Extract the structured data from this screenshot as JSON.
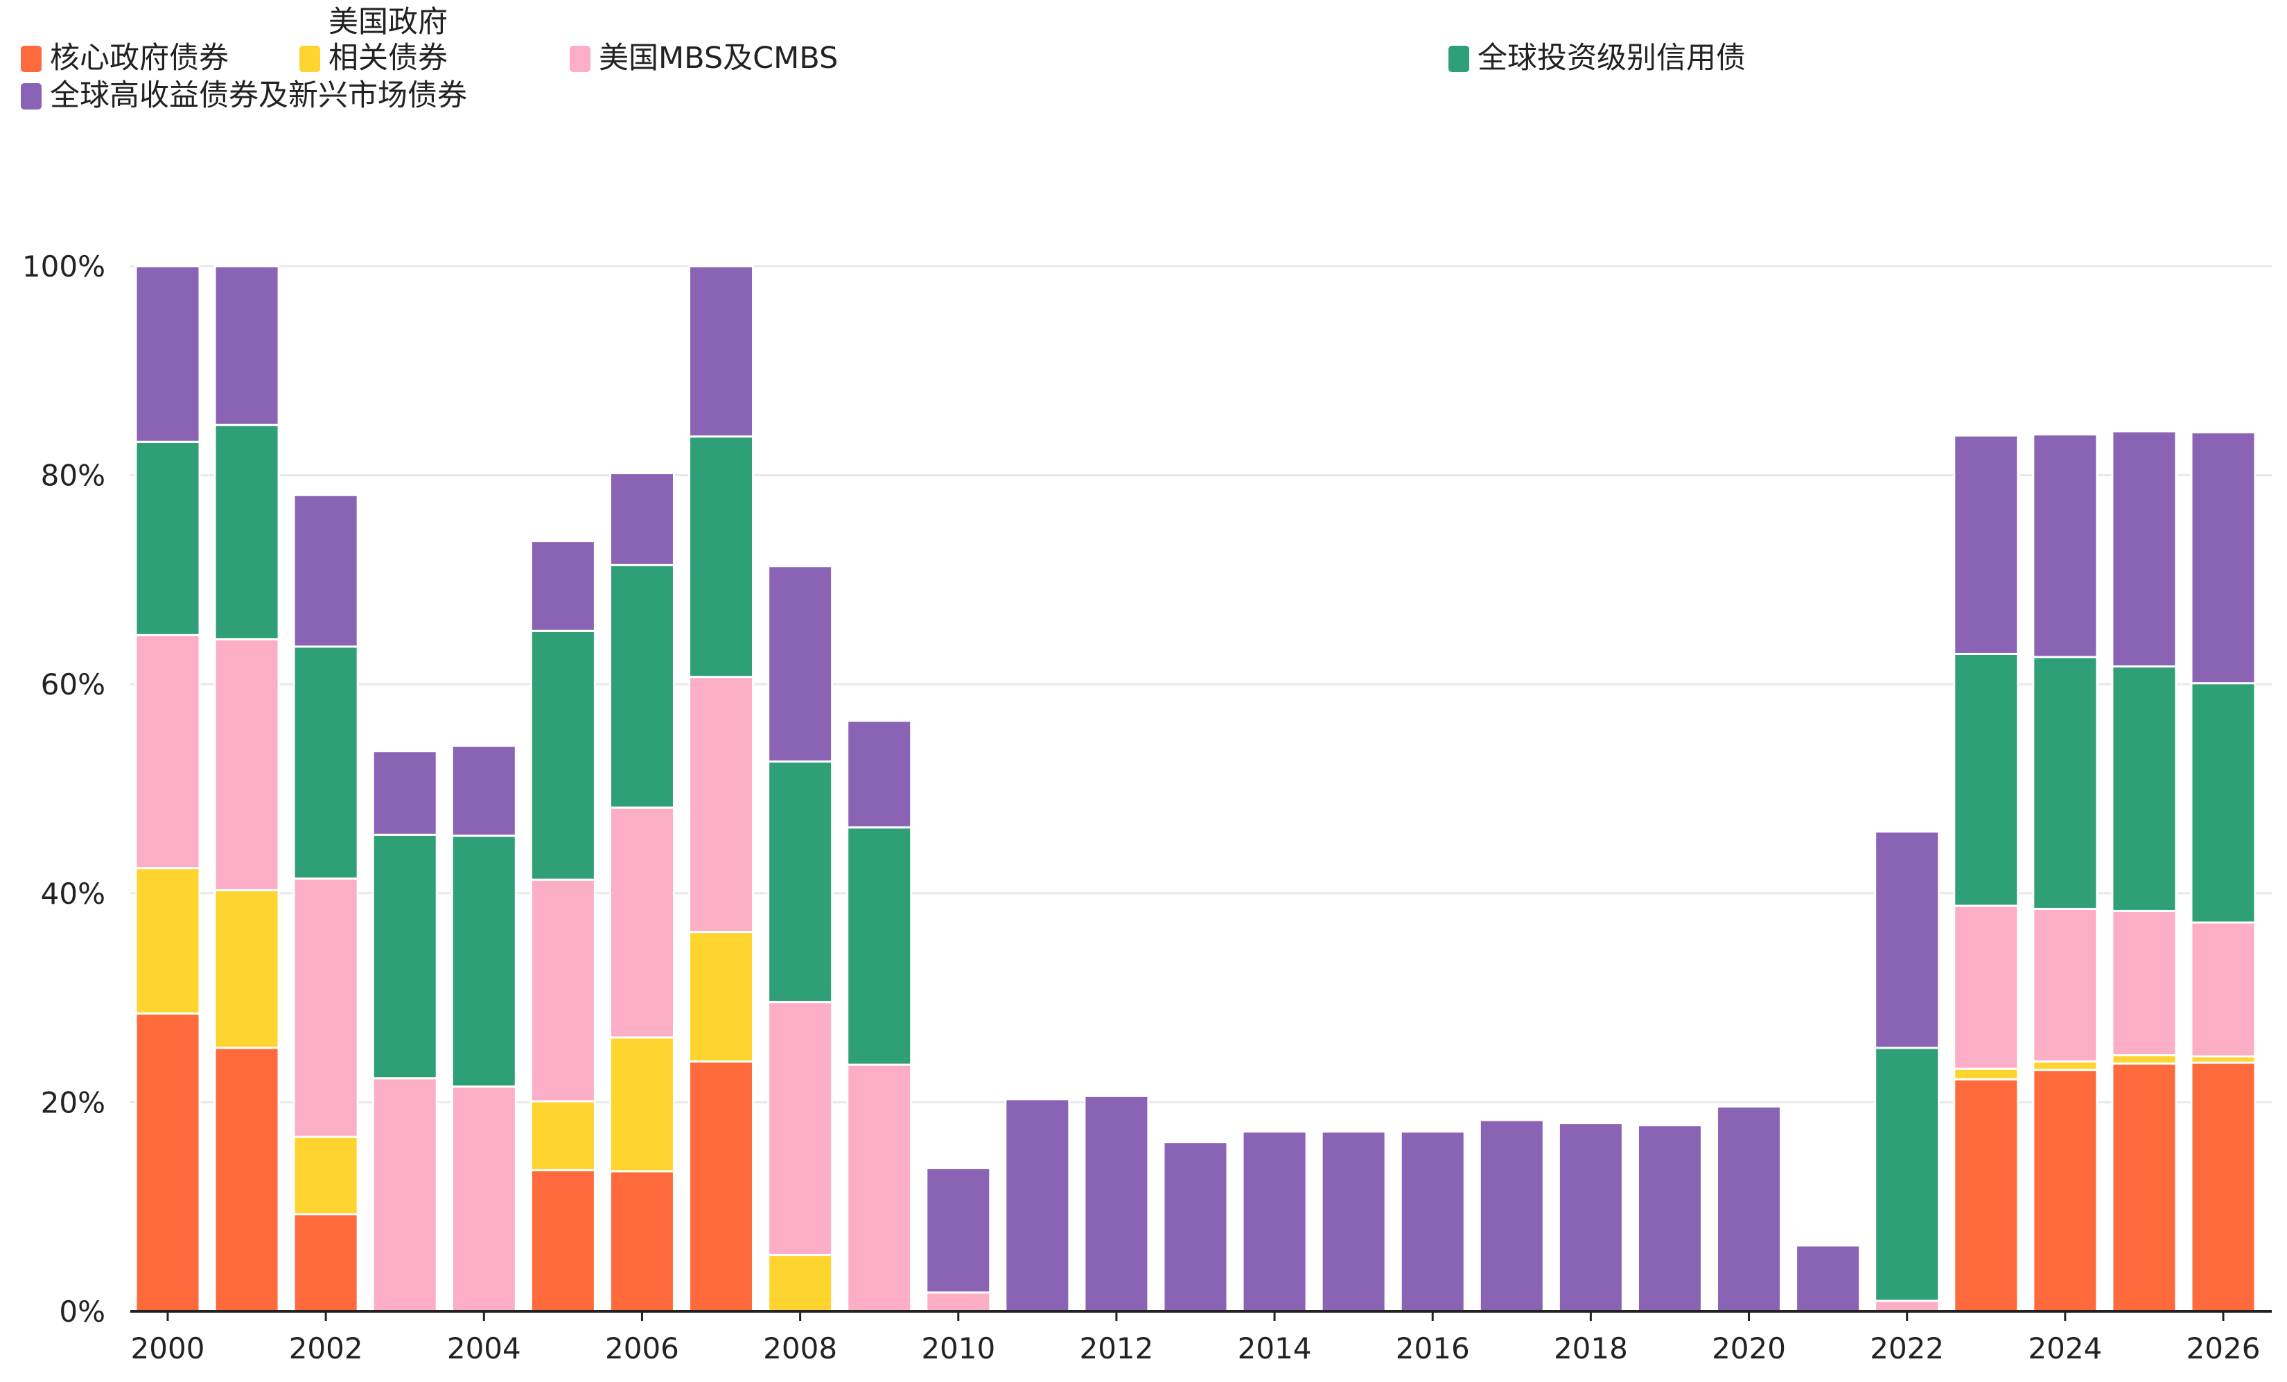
{
  "colors": {
    "core_gov": "#FF6A3D",
    "us_agency": "#FFD42E",
    "mbs_cmbs": "#FBAEC5",
    "ig_credit": "#2E9F76",
    "hy_em": "#8A63B5",
    "grid": "#E8E8E8",
    "axis": "#222222",
    "text": "#222222"
  },
  "chart_data": {
    "type": "bar",
    "stacked": true,
    "x": [
      2000,
      2001,
      2002,
      2003,
      2004,
      2005,
      2006,
      2007,
      2008,
      2009,
      2010,
      2011,
      2012,
      2013,
      2014,
      2015,
      2016,
      2017,
      2018,
      2019,
      2020,
      2021,
      2022,
      2023,
      2024,
      2025,
      2026
    ],
    "xticks": [
      "2000",
      "2002",
      "2004",
      "2006",
      "2008",
      "2010",
      "2012",
      "2014",
      "2016",
      "2018",
      "2020",
      "2022",
      "2024",
      "2026"
    ],
    "yticks": [
      "0%",
      "20%",
      "40%",
      "60%",
      "80%",
      "100%"
    ],
    "ylim": [
      0,
      100
    ],
    "grid": true,
    "legend_position": "top",
    "series": [
      {
        "name": "核心政府债券",
        "color_key": "core_gov",
        "values": [
          28.5,
          25.2,
          9.3,
          0,
          0,
          13.5,
          13.4,
          23.9,
          0,
          0,
          0,
          0,
          0,
          0,
          0,
          0,
          0,
          0,
          0,
          0,
          0,
          0,
          0,
          22.2,
          23.1,
          23.7,
          23.8
        ]
      },
      {
        "name": "美国政府\n相关债券",
        "color_key": "us_agency",
        "values": [
          13.9,
          15.1,
          7.4,
          0,
          0,
          6.6,
          12.8,
          12.4,
          5.4,
          0,
          0,
          0,
          0,
          0,
          0,
          0,
          0,
          0,
          0,
          0,
          0,
          0,
          0,
          1.0,
          0.8,
          0.8,
          0.6
        ]
      },
      {
        "name": "美国MBS及CMBS",
        "color_key": "mbs_cmbs",
        "values": [
          22.3,
          24.0,
          24.7,
          22.3,
          21.5,
          21.2,
          22.0,
          24.4,
          24.2,
          23.6,
          1.8,
          0,
          0,
          0,
          0,
          0,
          0,
          0,
          0,
          0,
          0,
          0,
          1.0,
          15.6,
          14.6,
          13.8,
          12.8
        ]
      },
      {
        "name": "全球投资级别信用债",
        "color_key": "ig_credit",
        "values": [
          18.5,
          20.5,
          22.2,
          23.3,
          24.0,
          23.8,
          23.2,
          23.0,
          23.0,
          22.7,
          0,
          0,
          0,
          0,
          0,
          0,
          0,
          0,
          0,
          0,
          0,
          0,
          24.2,
          24.1,
          24.1,
          23.4,
          22.9
        ]
      },
      {
        "name": "全球高收益债券及新兴市场债券",
        "color_key": "hy_em",
        "values": [
          16.8,
          15.2,
          14.5,
          8.0,
          8.6,
          8.6,
          8.8,
          16.3,
          18.7,
          10.2,
          11.9,
          20.3,
          20.6,
          16.2,
          17.2,
          17.2,
          17.2,
          18.3,
          18.0,
          17.8,
          19.6,
          6.3,
          20.7,
          20.9,
          21.3,
          22.5,
          24.0
        ]
      }
    ]
  },
  "legend": {
    "items": [
      {
        "label": "核心政府债券",
        "color_key": "core_gov"
      },
      {
        "label": "美国政府\n相关债券",
        "color_key": "us_agency"
      },
      {
        "label": "美国MBS及CMBS",
        "color_key": "mbs_cmbs"
      },
      {
        "label": "全球投资级别信用债",
        "color_key": "ig_credit"
      },
      {
        "label": "全球高收益债券及新兴市场债券",
        "color_key": "hy_em"
      }
    ]
  }
}
